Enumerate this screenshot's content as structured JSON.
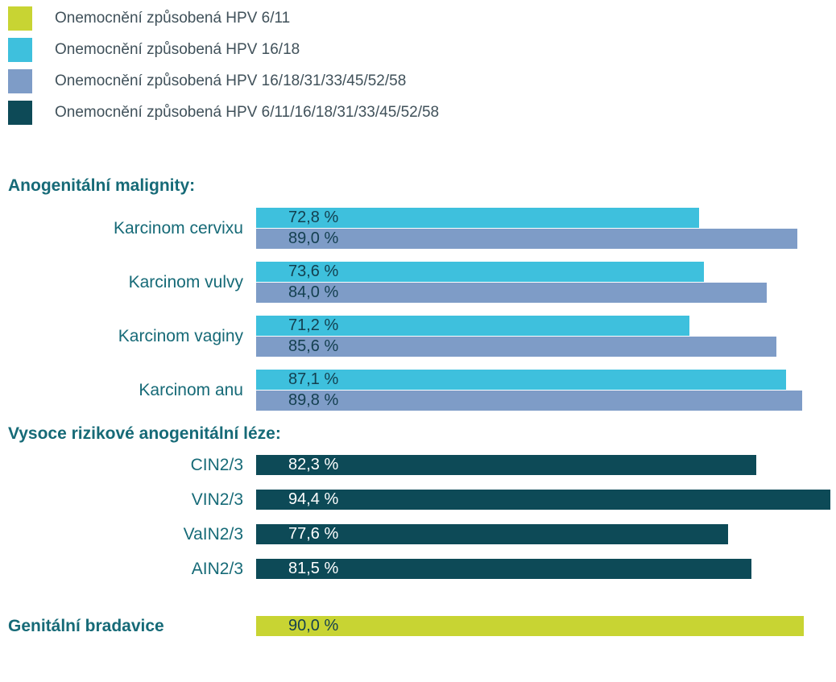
{
  "colors": {
    "hpv_6_11": "#c8d433",
    "hpv_16_18": "#3ec0dd",
    "hpv_16_18_7types": "#7e9cc7",
    "hpv_9valent": "#0d4a57",
    "heading_text": "#166a77",
    "value_dark_text": "#133f4f",
    "value_light_text": "#ffffff",
    "legend_text": "#40515a"
  },
  "legend": {
    "items": [
      {
        "label": "Onemocnění způsobená HPV 6/11",
        "color_key": "hpv_6_11"
      },
      {
        "label": "Onemocnění způsobená HPV 16/18",
        "color_key": "hpv_16_18"
      },
      {
        "label": "Onemocnění způsobená HPV 16/18/31/33/45/52/58",
        "color_key": "hpv_16_18_7types"
      },
      {
        "label": "Onemocnění způsobená HPV 6/11/16/18/31/33/45/52/58",
        "color_key": "hpv_9valent"
      }
    ]
  },
  "chart_data": {
    "type": "bar",
    "orientation": "horizontal",
    "unit": "%",
    "xlim": [
      0,
      100
    ],
    "legend_position": "top-left",
    "grid": false,
    "sections": [
      {
        "title": "Anogenitální malignity:",
        "row_type": "pair",
        "series_keys": [
          "hpv_16_18",
          "hpv_16_18_7types"
        ],
        "series_names": [
          "Onemocnění způsobená HPV 16/18",
          "Onemocnění způsobená HPV 16/18/31/33/45/52/58"
        ],
        "value_text_key": "value_dark_text",
        "rows": [
          {
            "category": "Karcinom cervixu",
            "values": [
              72.8,
              89.0
            ],
            "labels": [
              "72,8 %",
              "89,0 %"
            ]
          },
          {
            "category": "Karcinom vulvy",
            "values": [
              73.6,
              84.0
            ],
            "labels": [
              "73,6 %",
              "84,0 %"
            ]
          },
          {
            "category": "Karcinom vaginy",
            "values": [
              71.2,
              85.6
            ],
            "labels": [
              "71,2 %",
              "85,6 %"
            ]
          },
          {
            "category": "Karcinom anu",
            "values": [
              87.1,
              89.8
            ],
            "labels": [
              "87,1 %",
              "89,8 %"
            ]
          }
        ]
      },
      {
        "title": "Vysoce rizikové anogenitální léze:",
        "row_type": "single",
        "series_keys": [
          "hpv_9valent"
        ],
        "series_names": [
          "Onemocnění způsobená HPV 6/11/16/18/31/33/45/52/58"
        ],
        "value_text_key": "value_light_text",
        "rows": [
          {
            "category": "CIN2/3",
            "values": [
              82.3
            ],
            "labels": [
              "82,3 %"
            ]
          },
          {
            "category": "VIN2/3",
            "values": [
              94.4
            ],
            "labels": [
              "94,4 %"
            ]
          },
          {
            "category": "VaIN2/3",
            "values": [
              77.6
            ],
            "labels": [
              "77,6 %"
            ]
          },
          {
            "category": "AIN2/3",
            "values": [
              81.5
            ],
            "labels": [
              "81,5 %"
            ]
          }
        ]
      },
      {
        "title": "",
        "row_type": "single",
        "series_keys": [
          "hpv_6_11"
        ],
        "series_names": [
          "Onemocnění způsobená HPV 6/11"
        ],
        "value_text_key": "value_dark_text",
        "label_style": "heading",
        "rows": [
          {
            "category": "Genitální bradavice",
            "values": [
              90.0
            ],
            "labels": [
              "90,0 %"
            ]
          }
        ]
      }
    ]
  }
}
